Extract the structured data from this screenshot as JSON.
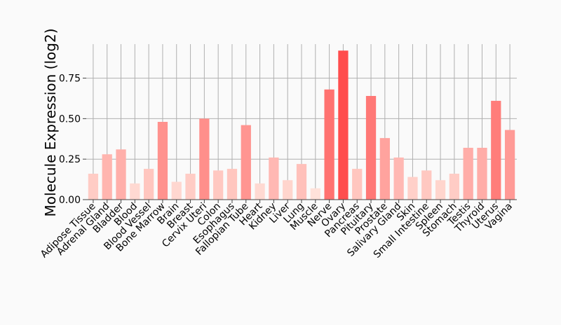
{
  "chart_data": {
    "type": "bar",
    "title": "",
    "xlabel": "",
    "ylabel": "Molecule Expression (log2)",
    "ylim": [
      0,
      0.96
    ],
    "yticks": [
      0.0,
      0.25,
      0.5,
      0.75
    ],
    "ytick_labels": [
      "0.00",
      "0.25",
      "0.50",
      "0.75"
    ],
    "grid": true,
    "legend": "none",
    "color_low": "#ffe2da",
    "color_high": "#ff4d4d",
    "categories": [
      "Adipose Tissue",
      "Adrenal Gland",
      "Bladder",
      "Blood",
      "Blood Vessel",
      "Bone Marrow",
      "Brain",
      "Breast",
      "Cervix Uteri",
      "Colon",
      "Esophagus",
      "Fallopian Tube",
      "Heart",
      "Kidney",
      "Liver",
      "Lung",
      "Muscle",
      "Nerve",
      "Ovary",
      "Pancreas",
      "Pituitary",
      "Prostate",
      "Salivary Gland",
      "Skin",
      "Small Intestine",
      "Spleen",
      "Stomach",
      "Testis",
      "Thyroid",
      "Uterus",
      "Vagina"
    ],
    "values": [
      0.16,
      0.28,
      0.31,
      0.1,
      0.19,
      0.48,
      0.11,
      0.16,
      0.5,
      0.18,
      0.19,
      0.46,
      0.1,
      0.26,
      0.12,
      0.22,
      0.07,
      0.68,
      0.92,
      0.19,
      0.64,
      0.38,
      0.26,
      0.14,
      0.18,
      0.12,
      0.16,
      0.32,
      0.32,
      0.61,
      0.43
    ]
  }
}
